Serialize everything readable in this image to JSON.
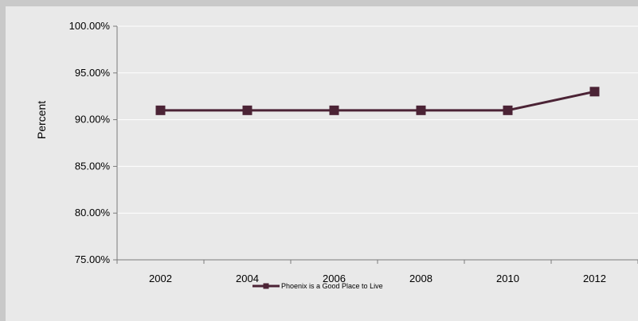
{
  "chart_data": {
    "type": "line",
    "title": "",
    "xlabel": "",
    "ylabel": "Percent",
    "x": [
      "2002",
      "2004",
      "2006",
      "2008",
      "2010",
      "2012"
    ],
    "ylim": [
      75,
      100
    ],
    "y_ticks": [
      "75.00%",
      "80.00%",
      "85.00%",
      "90.00%",
      "95.00%",
      "100.00%"
    ],
    "grid": true,
    "legend_position": "bottom",
    "series": [
      {
        "name": "Phoenix is a Good Place to Live",
        "values": [
          91,
          91,
          91,
          91,
          91,
          93
        ],
        "color": "#4b2335",
        "marker": "square"
      }
    ]
  }
}
